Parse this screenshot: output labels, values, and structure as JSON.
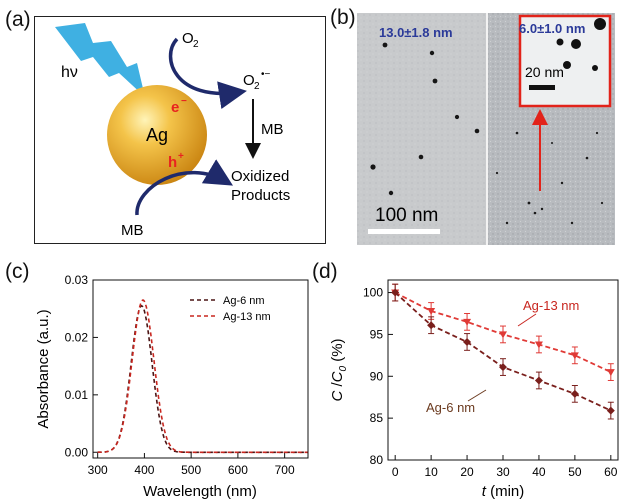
{
  "panels": {
    "a": {
      "letter": "(a)",
      "light_label": "hν",
      "o2": "O",
      "o2_sub": "2",
      "superoxide": "O",
      "superoxide_sub": "2",
      "superoxide_sup": "•−",
      "electron": "e",
      "electron_sup": "−",
      "hole": "h",
      "hole_sup": "+",
      "particle": "Ag",
      "mb_arrow": "MB",
      "mb_bottom": "MB",
      "products_line1": "Oxidized",
      "products_line2": "Products",
      "colors": {
        "sphere": "#e9a822",
        "bolt": "#3fb0e2",
        "arrow": "#1f2a6b",
        "carrier": "#e8231f"
      }
    },
    "b": {
      "letter": "(b)",
      "left_size": "13.0±1.8 nm",
      "right_size": "6.0±1.0 nm",
      "inset_scale": "20 nm",
      "scale_bar": "100 nm",
      "colors": {
        "size_label": "#2b3a99",
        "inset_border": "#e2231a",
        "pointer": "#e2231a"
      }
    },
    "c": {
      "letter": "(c)",
      "legend": [
        "Ag-6 nm",
        "Ag-13 nm"
      ]
    },
    "d": {
      "letter": "(d)",
      "label_13": "Ag-13 nm",
      "label_6": "Ag-6 nm"
    }
  },
  "chart_data": [
    {
      "panel": "c",
      "type": "line",
      "xlabel": "Wavelength (nm)",
      "ylabel": "Absorbance (a.u.)",
      "xlim": [
        290,
        750
      ],
      "ylim": [
        -0.001,
        0.03
      ],
      "xticks": [
        300,
        400,
        500,
        600,
        700
      ],
      "yticks": [
        0.0,
        0.01,
        0.02,
        0.03
      ],
      "ytick_labels": [
        "0.00",
        "0.01",
        "0.02",
        "0.03"
      ],
      "legend_position": "top-right",
      "series": [
        {
          "name": "Ag-6 nm",
          "color": "#4a1414",
          "peak_x": 394,
          "peak_y": 0.0255,
          "width": 24,
          "x": [
            300,
            350,
            370,
            380,
            390,
            394,
            400,
            410,
            420,
            440,
            460,
            500,
            750
          ],
          "y": [
            0.0,
            0.0,
            0.002,
            0.011,
            0.024,
            0.0255,
            0.0235,
            0.015,
            0.007,
            0.001,
            0.0,
            0.0,
            0.0
          ]
        },
        {
          "name": "Ag-13 nm",
          "color": "#c8261f",
          "peak_x": 397,
          "peak_y": 0.0265,
          "width": 25,
          "x": [
            300,
            350,
            370,
            380,
            390,
            397,
            400,
            410,
            420,
            440,
            460,
            500,
            750
          ],
          "y": [
            0.0,
            0.0,
            0.002,
            0.01,
            0.023,
            0.0265,
            0.026,
            0.018,
            0.009,
            0.0015,
            0.0,
            0.0,
            0.0
          ]
        }
      ]
    },
    {
      "panel": "d",
      "type": "line",
      "xlabel_italic": "t",
      "xlabel_rest": " (min)",
      "ylabel_c": "C",
      "ylabel_slash": " /",
      "ylabel_c0": "C",
      "ylabel_sub": "0",
      "ylabel_unit": " (%)",
      "xlim": [
        -2,
        62
      ],
      "ylim": [
        80,
        101.5
      ],
      "xticks": [
        0,
        10,
        20,
        30,
        40,
        50,
        60
      ],
      "yticks": [
        80,
        85,
        90,
        95,
        100
      ],
      "series": [
        {
          "name": "Ag-13 nm",
          "color": "#e03a36",
          "x": [
            0,
            10,
            20,
            30,
            40,
            50,
            60
          ],
          "y": [
            100.0,
            97.8,
            96.5,
            95.0,
            93.8,
            92.5,
            90.5
          ],
          "err": [
            1.0,
            1.0,
            1.0,
            1.0,
            1.0,
            1.0,
            1.0
          ]
        },
        {
          "name": "Ag-6 nm",
          "color": "#7a1f1c",
          "x": [
            0,
            10,
            20,
            30,
            40,
            50,
            60
          ],
          "y": [
            100.0,
            96.1,
            94.1,
            91.1,
            89.5,
            87.9,
            85.9
          ],
          "err": [
            1.0,
            1.0,
            1.0,
            1.0,
            1.0,
            1.0,
            1.0
          ]
        }
      ]
    }
  ]
}
